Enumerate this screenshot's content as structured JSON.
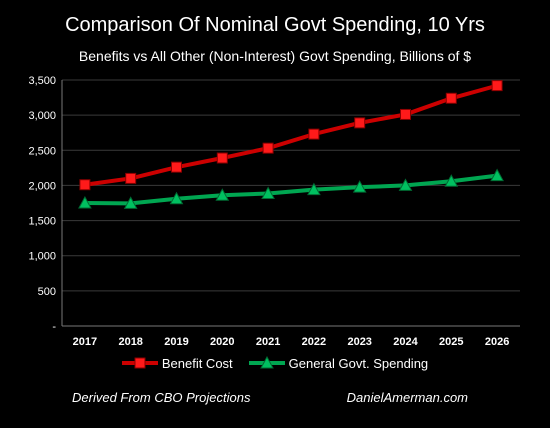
{
  "chart_data": {
    "type": "line",
    "title": "Comparison Of Nominal Govt Spending, 10 Yrs",
    "subtitle": "Benefits vs All Other (Non-Interest) Govt Spending, Billions of $",
    "categories": [
      "2017",
      "2018",
      "2019",
      "2020",
      "2021",
      "2022",
      "2023",
      "2024",
      "2025",
      "2026"
    ],
    "series": [
      {
        "name": "Benefit Cost",
        "color": "#cc0000",
        "marker": "square",
        "values": [
          2010,
          2100,
          2260,
          2390,
          2530,
          2730,
          2890,
          3010,
          3240,
          3420
        ]
      },
      {
        "name": "General Govt. Spending",
        "color": "#00a651",
        "marker": "triangle",
        "values": [
          1750,
          1745,
          1810,
          1860,
          1885,
          1940,
          1975,
          2000,
          2060,
          2140
        ]
      }
    ],
    "ylim": [
      0,
      3500
    ],
    "yticks": [
      {
        "value": 0,
        "label": "-"
      },
      {
        "value": 500,
        "label": "500"
      },
      {
        "value": 1000,
        "label": "1,000"
      },
      {
        "value": 1500,
        "label": "1,500"
      },
      {
        "value": 2000,
        "label": "2,000"
      },
      {
        "value": 2500,
        "label": "2,500"
      },
      {
        "value": 3000,
        "label": "3,000"
      },
      {
        "value": 3500,
        "label": "3,500"
      }
    ],
    "grid": true,
    "legend_position": "bottom"
  },
  "footer": {
    "left": "Derived From CBO Projections",
    "right": "DanielAmerman.com"
  },
  "colors": {
    "background": "#000000",
    "gridline": "#3a3a3a",
    "text": "#ffffff"
  }
}
